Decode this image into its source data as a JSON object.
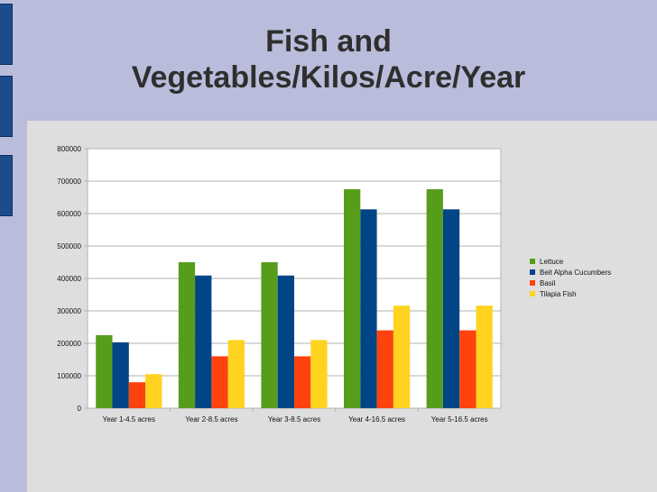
{
  "title_line1": "Fish and",
  "title_line2": "Vegetables/Kilos/Acre/Year",
  "chart_data": {
    "type": "bar",
    "title": "Fish and Vegetables/Kilos/Acre/Year",
    "categories": [
      "Year 1-4.5 acres",
      "Year 2-8.5 acres",
      "Year 3-8.5 acres",
      "Year 4-16.5 acres",
      "Year 5-16.5 acres"
    ],
    "series": [
      {
        "name": "Lettuce",
        "color": "#579d1c",
        "values": [
          225000,
          450000,
          450000,
          675000,
          675000
        ]
      },
      {
        "name": "Beit Alpha Cucumbers",
        "color": "#004586",
        "values": [
          203000,
          409000,
          409000,
          613000,
          613000
        ]
      },
      {
        "name": "Basil",
        "color": "#ff420e",
        "values": [
          80000,
          160000,
          160000,
          240000,
          240000
        ]
      },
      {
        "name": "Tilapia Fish",
        "color": "#ffd320",
        "values": [
          105000,
          210000,
          210000,
          316000,
          316000
        ]
      }
    ],
    "ylim": [
      0,
      800000
    ],
    "yticks": [
      "0",
      "100000",
      "200000",
      "300000",
      "400000",
      "500000",
      "600000",
      "700000",
      "800000"
    ],
    "grid": true,
    "legend_position": "right"
  }
}
